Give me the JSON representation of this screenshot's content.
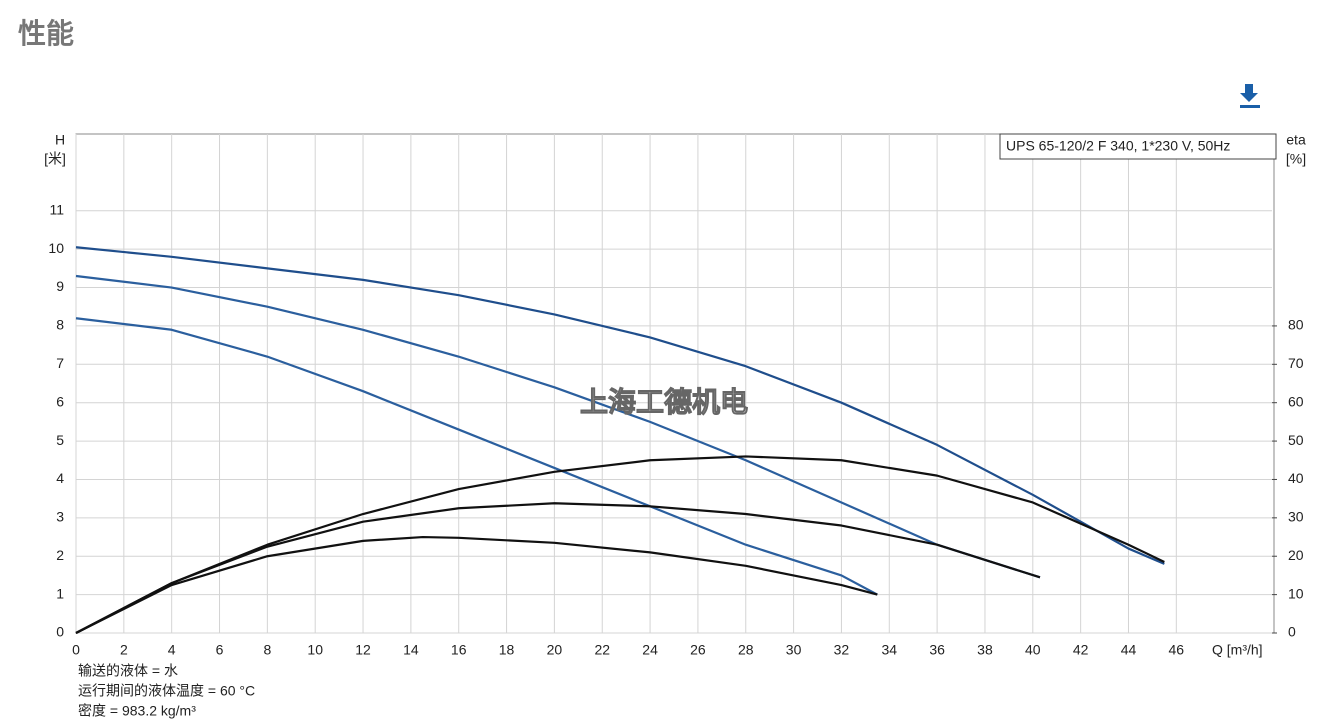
{
  "page_title": "性能",
  "chart_data": {
    "type": "line",
    "subtitle": "UPS 65-120/2 F 340, 1*230 V, 50Hz",
    "y_label": [
      "H",
      "[米]"
    ],
    "y2_label": [
      "eta",
      "[%]"
    ],
    "x_label": "Q [m³/h]",
    "watermark": "上海工德机电",
    "xlim": [
      0,
      50
    ],
    "xticks": [
      0,
      2,
      4,
      6,
      8,
      10,
      12,
      14,
      16,
      18,
      20,
      22,
      24,
      26,
      28,
      30,
      32,
      34,
      36,
      38,
      40,
      42,
      44,
      46
    ],
    "ylim": [
      0,
      13
    ],
    "yticks": [
      0,
      1,
      2,
      3,
      4,
      5,
      6,
      7,
      8,
      9,
      10,
      11
    ],
    "y2lim": [
      0,
      130
    ],
    "y2ticks": [
      0,
      10,
      20,
      30,
      40,
      50,
      60,
      70,
      80
    ],
    "grid": true,
    "series": [
      {
        "color": "#1f4e8c",
        "x": [
          0,
          4,
          8,
          12,
          16,
          20,
          24,
          28,
          32,
          36,
          40,
          44,
          45.5
        ],
        "values": [
          10.05,
          9.8,
          9.5,
          9.2,
          8.8,
          8.3,
          7.7,
          6.95,
          6.0,
          4.9,
          3.6,
          2.2,
          1.8
        ]
      },
      {
        "color": "#2b5f9e",
        "x": [
          0,
          4,
          8,
          12,
          16,
          20,
          24,
          28,
          32,
          36,
          40.3
        ],
        "values": [
          9.3,
          9.0,
          8.5,
          7.9,
          7.2,
          6.4,
          5.5,
          4.5,
          3.4,
          2.3,
          1.45
        ]
      },
      {
        "color": "#2b5f9e",
        "x": [
          0,
          4,
          8,
          12,
          16,
          20,
          24,
          28,
          32,
          33.5
        ],
        "values": [
          8.2,
          7.9,
          7.2,
          6.3,
          5.3,
          4.3,
          3.3,
          2.3,
          1.5,
          1.0
        ]
      },
      {
        "color": "#111111",
        "axis": "y2",
        "x": [
          0,
          4,
          8,
          12,
          16,
          20,
          24,
          28,
          32,
          36,
          40,
          44,
          45.5
        ],
        "values": [
          0,
          13,
          23,
          31,
          37.5,
          42,
          45,
          46,
          45,
          41,
          34,
          23,
          18.5
        ]
      },
      {
        "color": "#111111",
        "axis": "y2",
        "x": [
          0,
          4,
          8,
          12,
          16,
          20,
          24,
          28,
          32,
          36,
          40.3
        ],
        "values": [
          0,
          13,
          22.5,
          29,
          32.5,
          33.8,
          33,
          31,
          28,
          23,
          14.5
        ]
      },
      {
        "color": "#111111",
        "axis": "y2",
        "x": [
          0,
          4,
          8,
          12,
          14.5,
          16,
          20,
          24,
          28,
          32,
          33.5
        ],
        "values": [
          0,
          12.5,
          20,
          24,
          25,
          24.8,
          23.5,
          21,
          17.5,
          12.5,
          10
        ]
      }
    ],
    "notes": [
      "输送的液体 = 水",
      "运行期间的液体温度 = 60 °C",
      "密度 = 983.2 kg/m³"
    ]
  }
}
